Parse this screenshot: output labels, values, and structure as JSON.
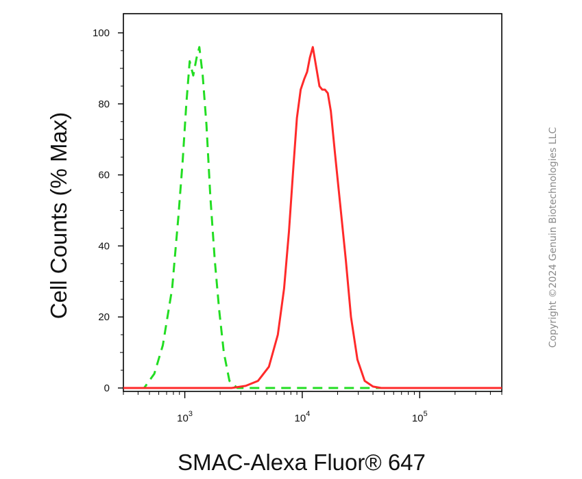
{
  "chart_data": {
    "type": "line",
    "xlabel": "SMAC-Alexa Fluor® 647",
    "ylabel": "Cell Counts (% Max)",
    "x_scale": "log",
    "xlim": [
      300,
      500000
    ],
    "ylim": [
      0,
      100
    ],
    "y_ticks": [
      {
        "value": 0,
        "label": "0"
      },
      {
        "value": 20,
        "label": "20"
      },
      {
        "value": 40,
        "label": "40"
      },
      {
        "value": 60,
        "label": "60"
      },
      {
        "value": 80,
        "label": "80"
      },
      {
        "value": 100,
        "label": "100"
      }
    ],
    "x_ticks": [
      {
        "value": 1000,
        "base": "10",
        "exp": "3"
      },
      {
        "value": 10000,
        "base": "10",
        "exp": "4"
      },
      {
        "value": 100000,
        "base": "10",
        "exp": "5"
      }
    ],
    "series": [
      {
        "color": "#22dd22",
        "style": "dashed",
        "points": [
          [
            300,
            0
          ],
          [
            450,
            0
          ],
          [
            550,
            4
          ],
          [
            650,
            12
          ],
          [
            780,
            28
          ],
          [
            880,
            48
          ],
          [
            960,
            64
          ],
          [
            1030,
            80
          ],
          [
            1100,
            92
          ],
          [
            1180,
            88
          ],
          [
            1260,
            93
          ],
          [
            1330,
            96
          ],
          [
            1420,
            88
          ],
          [
            1530,
            74
          ],
          [
            1650,
            54
          ],
          [
            1800,
            36
          ],
          [
            1960,
            22
          ],
          [
            2150,
            10
          ],
          [
            2400,
            2
          ],
          [
            2800,
            0
          ],
          [
            500000,
            0
          ]
        ]
      },
      {
        "color": "#ff2a2a",
        "style": "solid",
        "points": [
          [
            300,
            0
          ],
          [
            2500,
            0
          ],
          [
            3300,
            0.6
          ],
          [
            4200,
            2
          ],
          [
            5200,
            6
          ],
          [
            6200,
            15
          ],
          [
            7000,
            28
          ],
          [
            7700,
            44
          ],
          [
            8400,
            62
          ],
          [
            9000,
            76
          ],
          [
            9700,
            84
          ],
          [
            10400,
            87
          ],
          [
            11000,
            89
          ],
          [
            11600,
            93
          ],
          [
            12300,
            96
          ],
          [
            13200,
            90
          ],
          [
            14000,
            85
          ],
          [
            14800,
            84
          ],
          [
            15600,
            84
          ],
          [
            16500,
            83
          ],
          [
            17500,
            78
          ],
          [
            19000,
            66
          ],
          [
            21000,
            52
          ],
          [
            23500,
            36
          ],
          [
            26000,
            20
          ],
          [
            29500,
            8
          ],
          [
            34000,
            2
          ],
          [
            40000,
            0.4
          ],
          [
            47000,
            0
          ],
          [
            500000,
            0
          ]
        ]
      }
    ]
  },
  "copyright": "Copyright ©2024 Genuin Biotechnologies LLC"
}
